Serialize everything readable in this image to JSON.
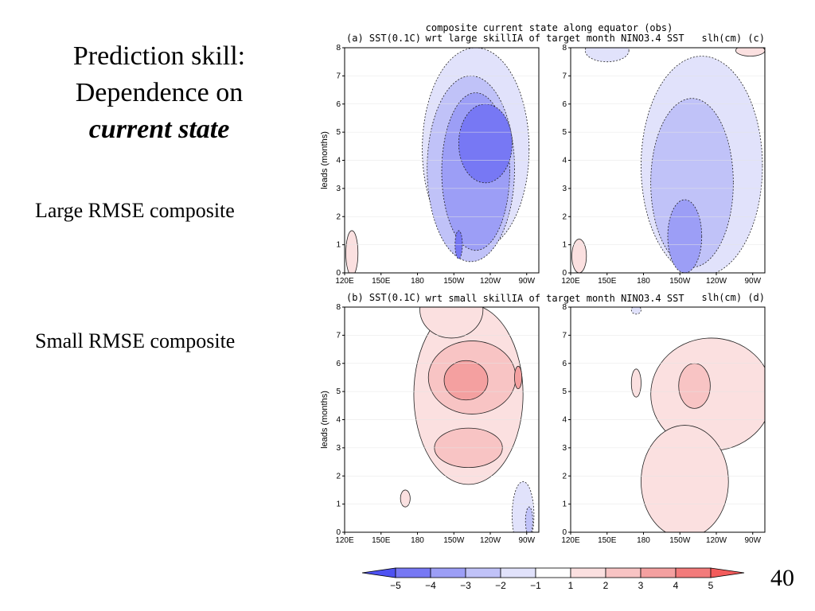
{
  "slide": {
    "title_lines": [
      "Prediction skill:",
      "Dependence on"
    ],
    "title_emphasis": "current state",
    "row_labels": [
      "Large RMSE composite",
      "Small RMSE composite"
    ],
    "page_number": "40"
  },
  "figure": {
    "header_line1": "composite current state along equator (obs)",
    "panels_top_caption": "wrt large skillIA of target month NINO3.4 SST",
    "panels_bottom_caption": "wrt small skillIA of target month NINO3.4 SST"
  },
  "chart_data": [
    {
      "type": "heatmap",
      "panel_label": "(a) SST(0.1C)",
      "composite": "Large RMSE composite",
      "xlabel": "",
      "ylabel": "leads (months)",
      "x_ticks": [
        "120E",
        "150E",
        "180",
        "150W",
        "120W",
        "90W"
      ],
      "x_tick_lon": [
        120,
        150,
        180,
        210,
        240,
        270
      ],
      "xlim": [
        120,
        280
      ],
      "ylim": [
        0,
        8
      ],
      "y_ticks": [
        0,
        1,
        2,
        3,
        4,
        5,
        6,
        7,
        8
      ],
      "features": [
        {
          "level": -1,
          "cx": 228,
          "cy": 4.4,
          "rx": 44,
          "ry": 3.6
        },
        {
          "level": -2,
          "cx": 224,
          "cy": 3.7,
          "rx": 36,
          "ry": 3.3
        },
        {
          "level": -3,
          "cx": 228,
          "cy": 3.6,
          "rx": 28,
          "ry": 2.8
        },
        {
          "level": -4,
          "cx": 236,
          "cy": 4.6,
          "rx": 22,
          "ry": 1.4
        },
        {
          "level": -4,
          "cx": 214,
          "cy": 1.0,
          "rx": 3,
          "ry": 0.5
        },
        {
          "level": 1,
          "cx": 126,
          "cy": 0.7,
          "rx": 5,
          "ry": 0.8
        }
      ]
    },
    {
      "type": "heatmap",
      "panel_label": "slh(cm) (c)",
      "composite": "Large RMSE composite",
      "xlabel": "",
      "ylabel": "",
      "x_ticks": [
        "120E",
        "150E",
        "180",
        "150W",
        "120W",
        "90W"
      ],
      "x_tick_lon": [
        120,
        150,
        180,
        210,
        240,
        270
      ],
      "xlim": [
        120,
        280
      ],
      "ylim": [
        0,
        8
      ],
      "y_ticks": [
        0,
        1,
        2,
        3,
        4,
        5,
        6,
        7,
        8
      ],
      "features": [
        {
          "level": -1,
          "cx": 228,
          "cy": 3.8,
          "rx": 50,
          "ry": 3.9
        },
        {
          "level": -2,
          "cx": 220,
          "cy": 3.2,
          "rx": 34,
          "ry": 3.0
        },
        {
          "level": -3,
          "cx": 214,
          "cy": 1.3,
          "rx": 14,
          "ry": 1.3
        },
        {
          "level": -1,
          "cx": 150,
          "cy": 7.9,
          "rx": 18,
          "ry": 0.4
        },
        {
          "level": 1,
          "cx": 127,
          "cy": 0.6,
          "rx": 6,
          "ry": 0.6
        },
        {
          "level": 1,
          "cx": 268,
          "cy": 7.9,
          "rx": 12,
          "ry": 0.2
        }
      ]
    },
    {
      "type": "heatmap",
      "panel_label": "(b) SST(0.1C)",
      "composite": "Small RMSE composite",
      "xlabel": "",
      "ylabel": "leads (months)",
      "x_ticks": [
        "120E",
        "150E",
        "180",
        "150W",
        "120W",
        "90W"
      ],
      "x_tick_lon": [
        120,
        150,
        180,
        210,
        240,
        270
      ],
      "xlim": [
        120,
        280
      ],
      "ylim": [
        0,
        8
      ],
      "y_ticks": [
        0,
        1,
        2,
        3,
        4,
        5,
        6,
        7,
        8
      ],
      "features": [
        {
          "level": 1,
          "cx": 222,
          "cy": 4.9,
          "rx": 45,
          "ry": 3.2
        },
        {
          "level": 1,
          "cx": 208,
          "cy": 7.9,
          "rx": 26,
          "ry": 1.0
        },
        {
          "level": 2,
          "cx": 225,
          "cy": 5.5,
          "rx": 36,
          "ry": 1.3
        },
        {
          "level": 2,
          "cx": 222,
          "cy": 3.0,
          "rx": 28,
          "ry": 0.7
        },
        {
          "level": 3,
          "cx": 220,
          "cy": 5.4,
          "rx": 18,
          "ry": 0.7
        },
        {
          "level": 3,
          "cx": 263,
          "cy": 5.5,
          "rx": 3,
          "ry": 0.4
        },
        {
          "level": 1,
          "cx": 170,
          "cy": 1.2,
          "rx": 4,
          "ry": 0.3
        },
        {
          "level": -1,
          "cx": 267,
          "cy": 0.6,
          "rx": 9,
          "ry": 1.2
        },
        {
          "level": -2,
          "cx": 272,
          "cy": 0.4,
          "rx": 3,
          "ry": 0.5
        }
      ]
    },
    {
      "type": "heatmap",
      "panel_label": "slh(cm) (d)",
      "composite": "Small RMSE composite",
      "xlabel": "",
      "ylabel": "",
      "x_ticks": [
        "120E",
        "150E",
        "180",
        "150W",
        "120W",
        "90W"
      ],
      "x_tick_lon": [
        120,
        150,
        180,
        210,
        240,
        270
      ],
      "xlim": [
        120,
        280
      ],
      "ylim": [
        0,
        8
      ],
      "y_ticks": [
        0,
        1,
        2,
        3,
        4,
        5,
        6,
        7,
        8
      ],
      "features": [
        {
          "level": 1,
          "cx": 236,
          "cy": 4.9,
          "rx": 50,
          "ry": 2.0
        },
        {
          "level": 1,
          "cx": 214,
          "cy": 1.8,
          "rx": 36,
          "ry": 2.0
        },
        {
          "level": 1,
          "cx": 174,
          "cy": 5.3,
          "rx": 4,
          "ry": 0.5
        },
        {
          "level": 2,
          "cx": 222,
          "cy": 5.2,
          "rx": 13,
          "ry": 0.8
        },
        {
          "level": -1,
          "cx": 174,
          "cy": 7.9,
          "rx": 4,
          "ry": 0.15
        }
      ]
    }
  ],
  "colorbar": {
    "ticks": [
      "-5",
      "-4",
      "-3",
      "-2",
      "-1",
      "1",
      "2",
      "3",
      "4",
      "5"
    ],
    "colors": [
      "#4e52f2",
      "#7778f4",
      "#9c9ef6",
      "#c0c2f8",
      "#e1e2fb",
      "#ffffff",
      "#fbe0e0",
      "#f8c4c4",
      "#f4a0a0",
      "#f27b7b",
      "#f25b5b"
    ]
  }
}
